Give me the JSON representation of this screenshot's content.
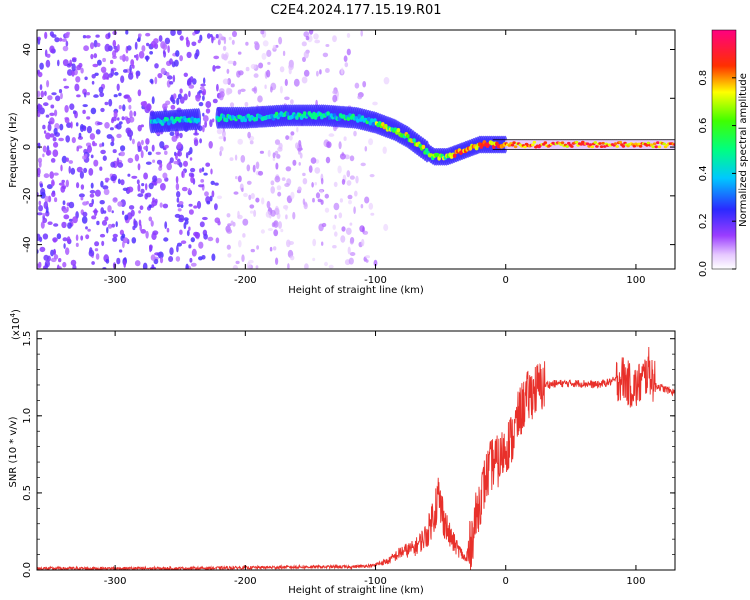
{
  "title": "C2E4.2024.177.15.19.R01",
  "chart_data": [
    {
      "type": "heatmap",
      "xlabel": "Height of straight line (km)",
      "ylabel": "Frequency (Hz)",
      "xlim": [
        -360,
        130
      ],
      "ylim": [
        -50,
        48
      ],
      "x_ticks": [
        -300,
        -200,
        -100,
        0,
        100
      ],
      "y_ticks": [
        -40,
        -20,
        0,
        20,
        40
      ],
      "colorbar": {
        "label": "Normalized spectral amplitude",
        "ticks": [
          "0.0",
          "0.2",
          "0.4",
          "0.6",
          "0.8"
        ],
        "range": [
          0,
          1
        ],
        "colormap": "rainbow (violet-blue-cyan-green-yellow-red-magenta)"
      },
      "ridge": {
        "description": "high-amplitude frequency ridge",
        "points": [
          {
            "x": -275,
            "y": 10
          },
          {
            "x": -250,
            "y": 11
          },
          {
            "x": -220,
            "y": 12
          },
          {
            "x": -200,
            "y": 12
          },
          {
            "x": -170,
            "y": 13
          },
          {
            "x": -140,
            "y": 13
          },
          {
            "x": -115,
            "y": 12
          },
          {
            "x": -100,
            "y": 10
          },
          {
            "x": -85,
            "y": 7
          },
          {
            "x": -75,
            "y": 4
          },
          {
            "x": -65,
            "y": 0
          },
          {
            "x": -55,
            "y": -4
          },
          {
            "x": -45,
            "y": -4
          },
          {
            "x": -30,
            "y": -1
          },
          {
            "x": -20,
            "y": 1
          },
          {
            "x": 0,
            "y": 1
          },
          {
            "x": 30,
            "y": 1
          },
          {
            "x": 60,
            "y": 1
          },
          {
            "x": 90,
            "y": 1
          },
          {
            "x": 110,
            "y": 1
          },
          {
            "x": 130,
            "y": 1
          }
        ]
      },
      "grid": false
    },
    {
      "type": "line",
      "xlabel": "Height of straight line (km)",
      "ylabel": "SNR (10 * v/v)",
      "y_multiplier_label": "(x10",
      "y_multiplier_exp": "4",
      "y_multiplier_close": ")",
      "xlim": [
        -360,
        130
      ],
      "ylim": [
        0,
        1.55
      ],
      "x_ticks": [
        -300,
        -200,
        -100,
        0,
        100
      ],
      "y_ticks": [
        "0.0",
        "0.5",
        "1.0",
        "1.5"
      ],
      "series": [
        {
          "color": "#e8302a",
          "x": [
            -360,
            -300,
            -250,
            -200,
            -150,
            -120,
            -100,
            -90,
            -80,
            -70,
            -60,
            -52,
            -48,
            -44,
            -40,
            -35,
            -30,
            -25,
            -20,
            -15,
            -10,
            -5,
            0,
            5,
            10,
            15,
            20,
            25,
            30,
            40,
            50,
            60,
            70,
            80,
            90,
            95,
            100,
            105,
            110,
            115,
            120,
            130
          ],
          "values": [
            0.01,
            0.01,
            0.01,
            0.015,
            0.02,
            0.02,
            0.03,
            0.05,
            0.1,
            0.12,
            0.2,
            0.4,
            0.3,
            0.2,
            0.15,
            0.1,
            0.05,
            0.25,
            0.45,
            0.6,
            0.7,
            0.7,
            0.8,
            0.85,
            1.0,
            1.1,
            1.15,
            1.18,
            1.2,
            1.21,
            1.21,
            1.21,
            1.2,
            1.22,
            1.25,
            1.2,
            1.18,
            1.23,
            1.3,
            1.2,
            1.18,
            1.15
          ]
        }
      ],
      "grid": false
    }
  ]
}
